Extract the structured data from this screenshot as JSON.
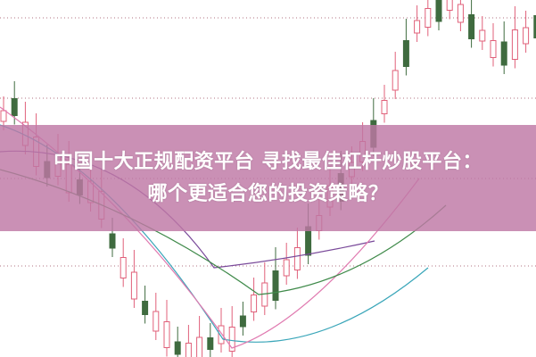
{
  "headline": {
    "line1": "中国十大正规配资平台 寻找最佳杠杆炒股平台：",
    "line2": "哪个更适合您的投资策略？"
  },
  "colors": {
    "banner": "#c58fb0",
    "candle_up": "#e0607a",
    "candle_down": "#3f6b3f",
    "ma_lines": [
      "#3aa6b9",
      "#7a4a9a",
      "#e07ab0",
      "#3f8a4a"
    ]
  },
  "icons": []
}
